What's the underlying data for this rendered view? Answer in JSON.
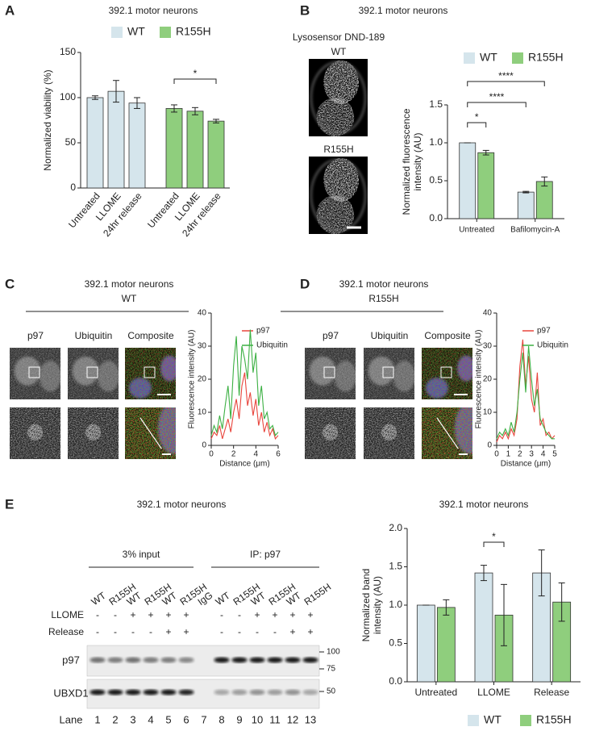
{
  "chart_data": [
    {
      "type": "bar",
      "title": "392.1 motor neurons",
      "categories": [
        "Untreated",
        "LLOME",
        "24hr release"
      ],
      "series": [
        {
          "name": "WT",
          "color": "#d5e5ec",
          "values": [
            100,
            107,
            94
          ],
          "errors": [
            2,
            12,
            6
          ]
        },
        {
          "name": "R155H",
          "color": "#8fce7d",
          "values": [
            88,
            85,
            74
          ],
          "errors": [
            4,
            4,
            2
          ]
        }
      ],
      "ylabel": [
        "Normalized viability (%)"
      ],
      "ylim": [
        0,
        150
      ],
      "yticks": [
        0,
        50,
        100,
        150
      ],
      "annotations": [
        "*"
      ]
    },
    {
      "type": "bar",
      "title": "392.1 motor neurons",
      "categories": [
        "Untreated",
        "Bafilomycin-A"
      ],
      "series": [
        {
          "name": "WT",
          "color": "#d5e5ec",
          "values": [
            1,
            0.35
          ],
          "errors": [
            0,
            0.01
          ]
        },
        {
          "name": "R155H",
          "color": "#8fce7d",
          "values": [
            0.87,
            0.49
          ],
          "errors": [
            0.03,
            0.06
          ]
        }
      ],
      "ylabel": [
        "Normalized fluorescence",
        "intensity (AU)"
      ],
      "ylim": [
        0,
        1.5
      ],
      "yticks": [
        {
          "value": 0,
          "label": "0.0"
        },
        0.5,
        {
          "value": 1,
          "label": "1.0"
        },
        1.5
      ],
      "annotations": [
        "*",
        "****",
        "****"
      ]
    },
    {
      "type": "line",
      "x": [
        0,
        0.25,
        0.5,
        0.75,
        1,
        1.25,
        1.5,
        1.75,
        2,
        2.25,
        2.5,
        2.75,
        3,
        3.25,
        3.5,
        3.75,
        4,
        4.25,
        4.5,
        4.75,
        5,
        5.25,
        5.5,
        5.75,
        6
      ],
      "series": [
        {
          "name": "p97",
          "color": "#e8453c",
          "values": [
            2,
            4,
            3,
            6,
            2,
            5,
            8,
            4,
            10,
            14,
            8,
            18,
            22,
            12,
            16,
            9,
            14,
            6,
            10,
            4,
            7,
            3,
            5,
            2,
            3
          ]
        },
        {
          "name": "Ubiquitin",
          "color": "#3cb043",
          "values": [
            3,
            6,
            4,
            9,
            5,
            12,
            18,
            8,
            24,
            33,
            15,
            30,
            26,
            20,
            35,
            22,
            28,
            12,
            18,
            8,
            10,
            5,
            6,
            3,
            4
          ]
        }
      ],
      "xlabel": "Distance (μm)",
      "ylabel": [
        "Fluorescence intensity (AU)"
      ],
      "xlim": [
        0,
        6
      ],
      "xticks": [
        0,
        2,
        4,
        6
      ],
      "ylim": [
        0,
        40
      ],
      "yticks": [
        0,
        10,
        20,
        30,
        40
      ]
    },
    {
      "type": "line",
      "x": [
        0,
        0.25,
        0.5,
        0.75,
        1,
        1.25,
        1.5,
        1.75,
        2,
        2.25,
        2.5,
        2.75,
        3,
        3.25,
        3.5,
        3.75,
        4,
        4.25,
        4.5,
        4.75,
        5
      ],
      "series": [
        {
          "name": "p97",
          "color": "#e8453c",
          "values": [
            1,
            3,
            2,
            4,
            2,
            5,
            3,
            8,
            24,
            32,
            18,
            27,
            14,
            10,
            22,
            6,
            8,
            3,
            4,
            2,
            3
          ]
        },
        {
          "name": "Ubiquitin",
          "color": "#3cb043",
          "values": [
            2,
            4,
            3,
            5,
            3,
            7,
            4,
            10,
            20,
            28,
            16,
            30,
            20,
            12,
            17,
            8,
            6,
            4,
            3,
            2,
            2
          ]
        }
      ],
      "xlabel": "Distance (μm)",
      "ylabel": [
        "Fluorescence intensity (AU)"
      ],
      "xlim": [
        0,
        5
      ],
      "xticks": [
        0,
        1,
        2,
        3,
        4,
        5
      ],
      "ylim": [
        0,
        40
      ],
      "yticks": [
        0,
        10,
        20,
        30,
        40
      ]
    },
    {
      "type": "bar",
      "title": "392.1 motor neurons",
      "categories": [
        "Untreated",
        "LLOME",
        "Release"
      ],
      "series": [
        {
          "name": "WT",
          "color": "#d5e5ec",
          "values": [
            1,
            1.42,
            1.42
          ],
          "errors": [
            0,
            0.1,
            0.3
          ]
        },
        {
          "name": "R155H",
          "color": "#8fce7d",
          "values": [
            0.97,
            0.87,
            1.04
          ],
          "errors": [
            0.1,
            0.4,
            0.25
          ]
        }
      ],
      "ylabel": [
        "Normalized band",
        "intensity (AU)"
      ],
      "ylim": [
        0,
        2
      ],
      "yticks": [
        {
          "value": 0,
          "label": "0.0"
        },
        0.5,
        {
          "value": 1,
          "label": "1.0"
        },
        1.5,
        {
          "value": 2,
          "label": "2.0"
        }
      ],
      "annotations": [
        "*"
      ]
    }
  ],
  "panel_labels": [
    "A",
    "B",
    "C",
    "D",
    "E"
  ],
  "panel_b": {
    "stain": "Lysosensor DND-189",
    "genotypes": [
      "WT",
      "R155H"
    ]
  },
  "panel_c": {
    "title": "392.1 motor neurons",
    "genotype": "WT",
    "channels": [
      "p97",
      "Ubiquitin",
      "Composite"
    ]
  },
  "panel_d": {
    "title": "392.1 motor neurons",
    "genotype": "R155H",
    "channels": [
      "p97",
      "Ubiquitin",
      "Composite"
    ]
  },
  "panel_e": {
    "title": "392.1 motor neurons",
    "groups": [
      "3% input",
      "IP: p97"
    ],
    "samples": [
      "WT",
      "R155H",
      "WT",
      "R155H",
      "WT",
      "R155H",
      "IgG",
      "WT",
      "R155H",
      "WT",
      "R155H",
      "WT",
      "R155H"
    ],
    "conditions": [
      {
        "name": "LLOME",
        "signs": [
          "-",
          "-",
          "+",
          "+",
          "+",
          "+",
          null,
          "-",
          "-",
          "+",
          "+",
          "+",
          "+"
        ]
      },
      {
        "name": "Release",
        "signs": [
          "-",
          "-",
          "-",
          "-",
          "+",
          "+",
          null,
          "-",
          "-",
          "-",
          "-",
          "+",
          "+"
        ]
      }
    ],
    "blots": [
      {
        "name": "p97",
        "markers": [
          100,
          75
        ]
      },
      {
        "name": "UBXD1",
        "markers": [
          50
        ]
      }
    ],
    "lane_label": "Lane",
    "lanes": [
      1,
      2,
      3,
      4,
      5,
      6,
      7,
      8,
      9,
      10,
      11,
      12,
      13
    ]
  }
}
